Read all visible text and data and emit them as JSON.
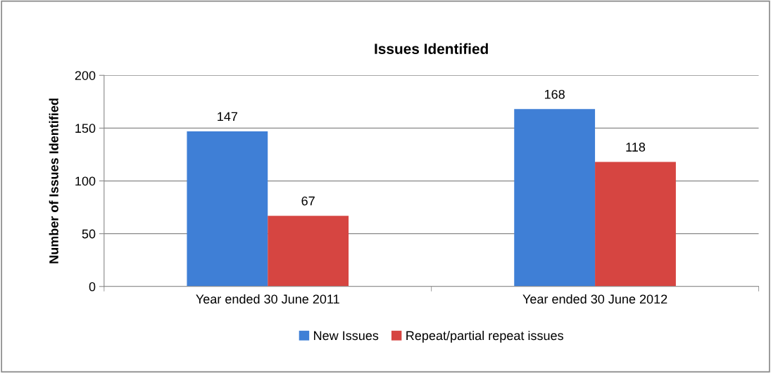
{
  "chart_data": {
    "type": "bar",
    "title": "Issues Identified",
    "ylabel": "Number of Issues Identified",
    "categories": [
      "Year ended 30 June 2011",
      "Year ended 30 June 2012"
    ],
    "series": [
      {
        "name": "New Issues",
        "color": "#3f7fd6",
        "values": [
          147,
          168
        ]
      },
      {
        "name": "Repeat/partial repeat issues",
        "color": "#d64541",
        "values": [
          67,
          118
        ]
      }
    ],
    "ylim": [
      0,
      200
    ],
    "yticks": [
      0,
      50,
      100,
      150,
      200
    ],
    "grid": "y",
    "legend": "bottom",
    "data_labels": true
  }
}
